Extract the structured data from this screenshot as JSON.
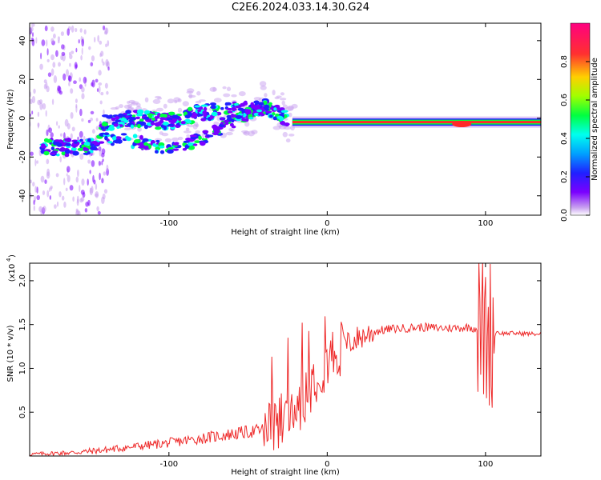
{
  "title": "C2E6.2024.033.14.30.G24",
  "colors": {
    "snr_line": "#ee2a2a",
    "spectrogram_ridge": "#ff2a2a",
    "colormap": [
      "#ffffff",
      "#c8a0f0",
      "#7a00ff",
      "#2020ff",
      "#00a0ff",
      "#00ffee",
      "#00ff40",
      "#a0ff00",
      "#ffd000",
      "#ff3030",
      "#ff0080"
    ]
  },
  "chart_data": [
    {
      "type": "heatmap",
      "xlabel": "Height of straight line (km)",
      "ylabel": "Frequency (Hz)",
      "xlim": [
        -188,
        135
      ],
      "ylim": [
        -50,
        49
      ],
      "x_ticks": [
        -100,
        0,
        100
      ],
      "y_ticks": [
        -40,
        -20,
        0,
        20,
        40
      ],
      "colorbar": {
        "label": "Normalized spectral amplitude",
        "range": [
          0.0,
          1.0
        ],
        "ticks": [
          "0.0",
          "0.2",
          "0.4",
          "0.6",
          "0.8"
        ]
      },
      "ridge": {
        "x": [
          -180,
          -160,
          -145,
          -140,
          -120,
          -100,
          -80,
          -60,
          -45,
          -38,
          -30,
          -25,
          -20,
          0,
          50,
          80,
          90,
          100,
          135
        ],
        "y": [
          -15,
          -15,
          -15,
          -2,
          0,
          -2,
          3,
          4,
          5,
          6,
          2,
          -1,
          -2,
          -2,
          -2,
          -2,
          -3,
          -2,
          -2
        ]
      },
      "secondary_ridge": {
        "x": [
          -140,
          -120,
          -100,
          -80,
          -60,
          -45,
          -38
        ],
        "y": [
          -10,
          -12,
          -16,
          -11,
          -2,
          4,
          6
        ]
      }
    },
    {
      "type": "line",
      "xlabel": "Height of straight line (km)",
      "ylabel": "SNR (10 * v/v)",
      "y_scale_label": "(x10",
      "y_scale_exp": "4",
      "xlim": [
        -188,
        135
      ],
      "ylim": [
        0.0,
        2.2
      ],
      "x_ticks": [
        -100,
        0,
        100
      ],
      "y_ticks": [
        0.5,
        1.0,
        1.5,
        2.0
      ],
      "series": [
        {
          "x": [
            -188,
            -160,
            -140,
            -120,
            -100,
            -80,
            -60,
            -40,
            -30,
            -25,
            -20,
            -15,
            -10,
            -5,
            0,
            10,
            20,
            30,
            40,
            50,
            60,
            70,
            80,
            90,
            95,
            100,
            105,
            110,
            120,
            135
          ],
          "y": [
            0.02,
            0.04,
            0.07,
            0.11,
            0.15,
            0.2,
            0.25,
            0.3,
            0.35,
            0.45,
            0.55,
            0.7,
            0.85,
            1.0,
            1.12,
            1.25,
            1.35,
            1.42,
            1.45,
            1.46,
            1.47,
            1.46,
            1.46,
            1.47,
            1.45,
            1.4,
            1.43,
            1.4,
            1.4,
            1.39
          ]
        }
      ]
    }
  ]
}
